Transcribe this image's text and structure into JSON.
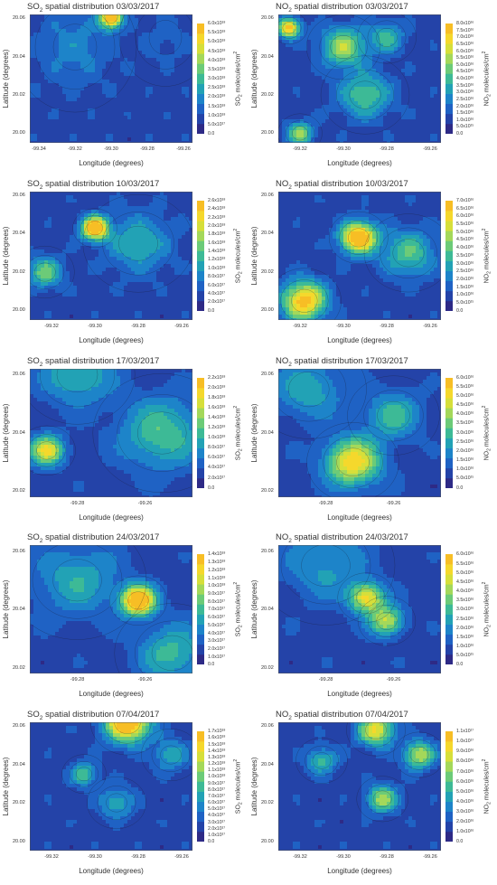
{
  "x_axis_label": "Longitude (degrees)",
  "y_axis_label": "Latitude (degrees)",
  "colorscale": [
    "#2e2a86",
    "#2443a8",
    "#1f62c4",
    "#1d84c9",
    "#22a2b5",
    "#3dba96",
    "#6ccb78",
    "#a4d85a",
    "#d6df3a",
    "#f5d82c",
    "#f7be25"
  ],
  "chart_data": [
    {
      "type": "heatmap",
      "pollutant": "SO",
      "sub": "2",
      "title_rest": " spatial distribution 03/03/2017",
      "xticks": [
        "-99.34",
        "-99.32",
        "-99.30",
        "-99.28",
        "-99.26"
      ],
      "yticks": [
        "20.06",
        "20.04",
        "20.02",
        "20.00"
      ],
      "xlim": [
        -99.345,
        -99.255
      ],
      "ylim": [
        19.995,
        20.062
      ],
      "colorbar": {
        "unit_main": "SO",
        "unit_sub": "2",
        "unit_rest": " molecules/cm",
        "ticks": [
          "6.0x10¹⁸",
          "5.5x10¹⁸",
          "5.0x10¹⁸",
          "4.5x10¹⁸",
          "4.0x10¹⁸",
          "3.5x10¹⁸",
          "3.0x10¹⁸",
          "2.5x10¹⁸",
          "2.0x10¹⁸",
          "1.5x10¹⁸",
          "1.0x10¹⁸",
          "5.0x10¹⁷",
          "0.0"
        ]
      },
      "hotspots": [
        {
          "x": -99.3,
          "y": 20.061,
          "strength": 1.0,
          "spread": 0.006
        },
        {
          "x": -99.32,
          "y": 20.045,
          "strength": 0.18,
          "spread": 0.02
        },
        {
          "x": -99.27,
          "y": 20.05,
          "strength": 0.08,
          "spread": 0.015
        }
      ]
    },
    {
      "type": "heatmap",
      "pollutant": "NO",
      "sub": "2",
      "title_rest": " spatial distribution 03/03/2017",
      "xticks": [
        "-99.32",
        "-99.30",
        "-99.28",
        "-99.26"
      ],
      "yticks": [
        "20.06",
        "20.04",
        "20.02",
        "20.00"
      ],
      "xlim": [
        -99.33,
        -99.255
      ],
      "ylim": [
        19.995,
        20.062
      ],
      "colorbar": {
        "unit_main": "NO",
        "unit_sub": "2",
        "unit_rest": " molecules/cm",
        "ticks": [
          "8.0x10¹⁶",
          "7.5x10¹⁶",
          "7.0x10¹⁶",
          "6.5x10¹⁶",
          "6.0x10¹⁶",
          "5.5x10¹⁶",
          "5.0x10¹⁶",
          "4.5x10¹⁶",
          "4.0x10¹⁶",
          "3.5x10¹⁶",
          "3.0x10¹⁶",
          "2.5x10¹⁶",
          "2.0x10¹⁶",
          "1.5x10¹⁶",
          "1.0x10¹⁶",
          "5.0x10¹⁵",
          "0.0"
        ]
      },
      "hotspots": [
        {
          "x": -99.325,
          "y": 20.055,
          "strength": 0.85,
          "spread": 0.005
        },
        {
          "x": -99.3,
          "y": 20.045,
          "strength": 0.55,
          "spread": 0.01
        },
        {
          "x": -99.28,
          "y": 20.05,
          "strength": 0.35,
          "spread": 0.008
        },
        {
          "x": -99.29,
          "y": 20.02,
          "strength": 0.4,
          "spread": 0.012
        },
        {
          "x": -99.32,
          "y": 20.0,
          "strength": 0.5,
          "spread": 0.006
        }
      ]
    },
    {
      "type": "heatmap",
      "pollutant": "SO",
      "sub": "2",
      "title_rest": " spatial distribution 10/03/2017",
      "xticks": [
        "-99.32",
        "-99.30",
        "-99.28",
        "-99.26"
      ],
      "yticks": [
        "20.06",
        "20.04",
        "20.02",
        "20.00"
      ],
      "xlim": [
        -99.33,
        -99.255
      ],
      "ylim": [
        19.995,
        20.062
      ],
      "colorbar": {
        "unit_main": "SO",
        "unit_sub": "2",
        "unit_rest": " molecules/cm",
        "ticks": [
          "2.6x10¹⁸",
          "2.4x10¹⁸",
          "2.2x10¹⁸",
          "2.0x10¹⁸",
          "1.8x10¹⁸",
          "1.6x10¹⁸",
          "1.4x10¹⁸",
          "1.2x10¹⁸",
          "1.0x10¹⁸",
          "8.0x10¹⁷",
          "6.0x10¹⁷",
          "4.0x10¹⁷",
          "2.0x10¹⁷",
          "0.0"
        ]
      },
      "hotspots": [
        {
          "x": -99.3,
          "y": 20.043,
          "strength": 1.0,
          "spread": 0.006
        },
        {
          "x": -99.323,
          "y": 20.02,
          "strength": 0.45,
          "spread": 0.008
        },
        {
          "x": -99.28,
          "y": 20.035,
          "strength": 0.3,
          "spread": 0.015
        }
      ]
    },
    {
      "type": "heatmap",
      "pollutant": "NO",
      "sub": "2",
      "title_rest": " spatial distribution 10/03/2017",
      "xticks": [
        "-99.32",
        "-99.30",
        "-99.28",
        "-99.26"
      ],
      "yticks": [
        "20.06",
        "20.04",
        "20.02",
        "20.00"
      ],
      "xlim": [
        -99.33,
        -99.255
      ],
      "ylim": [
        19.995,
        20.062
      ],
      "colorbar": {
        "unit_main": "NO",
        "unit_sub": "2",
        "unit_rest": " molecules/cm",
        "ticks": [
          "7.0x10¹⁶",
          "6.5x10¹⁶",
          "6.0x10¹⁶",
          "5.5x10¹⁶",
          "5.0x10¹⁶",
          "4.5x10¹⁶",
          "4.0x10¹⁶",
          "3.5x10¹⁶",
          "3.0x10¹⁶",
          "2.5x10¹⁶",
          "2.0x10¹⁶",
          "1.5x10¹⁶",
          "1.0x10¹⁶",
          "5.0x10¹⁵",
          "0.0"
        ]
      },
      "hotspots": [
        {
          "x": -99.293,
          "y": 20.038,
          "strength": 1.0,
          "spread": 0.008
        },
        {
          "x": -99.318,
          "y": 20.005,
          "strength": 0.85,
          "spread": 0.01
        },
        {
          "x": -99.27,
          "y": 20.03,
          "strength": 0.4,
          "spread": 0.012
        }
      ]
    },
    {
      "type": "heatmap",
      "pollutant": "SO",
      "sub": "2",
      "title_rest": " spatial distribution 17/03/2017",
      "xticks": [
        "-99.28",
        "-99.26"
      ],
      "yticks": [
        "20.06",
        "20.04",
        "20.02"
      ],
      "xlim": [
        -99.294,
        -99.246
      ],
      "ylim": [
        20.018,
        20.062
      ],
      "colorbar": {
        "unit_main": "SO",
        "unit_sub": "2",
        "unit_rest": " molecules/cm",
        "ticks": [
          "2.2x10¹⁸",
          "2.0x10¹⁸",
          "1.8x10¹⁸",
          "1.6x10¹⁸",
          "1.4x10¹⁸",
          "1.2x10¹⁸",
          "1.0x10¹⁸",
          "8.0x10¹⁷",
          "6.0x10¹⁷",
          "4.0x10¹⁷",
          "2.0x10¹⁷",
          "0.0"
        ]
      },
      "hotspots": [
        {
          "x": -99.289,
          "y": 20.034,
          "strength": 0.7,
          "spread": 0.005
        },
        {
          "x": -99.255,
          "y": 20.04,
          "strength": 0.4,
          "spread": 0.012
        },
        {
          "x": -99.28,
          "y": 20.06,
          "strength": 0.35,
          "spread": 0.01
        }
      ]
    },
    {
      "type": "heatmap",
      "pollutant": "NO",
      "sub": "2",
      "title_rest": " spatial distribution 17/03/2017",
      "xticks": [
        "-99.28",
        "-99.26"
      ],
      "yticks": [
        "20.06",
        "20.04",
        "20.02"
      ],
      "xlim": [
        -99.294,
        -99.246
      ],
      "ylim": [
        20.018,
        20.062
      ],
      "colorbar": {
        "unit_main": "NO",
        "unit_sub": "2",
        "unit_rest": " molecules/cm",
        "ticks": [
          "6.0x10¹⁶",
          "5.5x10¹⁶",
          "5.0x10¹⁶",
          "4.5x10¹⁶",
          "4.0x10¹⁶",
          "3.5x10¹⁶",
          "3.0x10¹⁶",
          "2.5x10¹⁶",
          "2.0x10¹⁶",
          "1.5x10¹⁶",
          "1.0x10¹⁶",
          "5.0x10¹⁵",
          "0.0"
        ]
      },
      "hotspots": [
        {
          "x": -99.272,
          "y": 20.03,
          "strength": 0.75,
          "spread": 0.008
        },
        {
          "x": -99.26,
          "y": 20.046,
          "strength": 0.35,
          "spread": 0.008
        },
        {
          "x": -99.285,
          "y": 20.055,
          "strength": 0.3,
          "spread": 0.01
        }
      ]
    },
    {
      "type": "heatmap",
      "pollutant": "SO",
      "sub": "2",
      "title_rest": " spatial distribution 24/03/2017",
      "xticks": [
        "-99.28",
        "-99.26"
      ],
      "yticks": [
        "20.06",
        "20.04",
        "20.02"
      ],
      "xlim": [
        -99.294,
        -99.246
      ],
      "ylim": [
        20.018,
        20.062
      ],
      "colorbar": {
        "unit_main": "SO",
        "unit_sub": "2",
        "unit_rest": " molecules/cm",
        "ticks": [
          "1.4x10¹⁸",
          "1.3x10¹⁸",
          "1.2x10¹⁸",
          "1.1x10¹⁸",
          "1.0x10¹⁸",
          "9.0x10¹⁷",
          "8.0x10¹⁷",
          "7.0x10¹⁷",
          "6.0x10¹⁷",
          "5.0x10¹⁷",
          "4.0x10¹⁷",
          "3.0x10¹⁷",
          "2.0x10¹⁷",
          "1.0x10¹⁷",
          "0.0"
        ]
      },
      "hotspots": [
        {
          "x": -99.262,
          "y": 20.043,
          "strength": 1.0,
          "spread": 0.005
        },
        {
          "x": -99.28,
          "y": 20.05,
          "strength": 0.3,
          "spread": 0.012
        },
        {
          "x": -99.252,
          "y": 20.025,
          "strength": 0.35,
          "spread": 0.01
        }
      ]
    },
    {
      "type": "heatmap",
      "pollutant": "NO",
      "sub": "2",
      "title_rest": " spatial distribution 24/03/2017",
      "xticks": [
        "-99.28",
        "-99.26"
      ],
      "yticks": [
        "20.06",
        "20.04",
        "20.02"
      ],
      "xlim": [
        -99.294,
        -99.246
      ],
      "ylim": [
        20.018,
        20.062
      ],
      "colorbar": {
        "unit_main": "NO",
        "unit_sub": "2",
        "unit_rest": " molecules/cm",
        "ticks": [
          "6.0x10¹⁶",
          "5.5x10¹⁶",
          "5.0x10¹⁶",
          "4.5x10¹⁶",
          "4.0x10¹⁶",
          "3.5x10¹⁶",
          "3.0x10¹⁶",
          "2.5x10¹⁶",
          "2.0x10¹⁶",
          "1.5x10¹⁶",
          "1.0x10¹⁶",
          "5.0x10¹⁵",
          "0.0"
        ]
      },
      "hotspots": [
        {
          "x": -99.268,
          "y": 20.044,
          "strength": 0.7,
          "spread": 0.005
        },
        {
          "x": -99.262,
          "y": 20.036,
          "strength": 0.6,
          "spread": 0.005
        },
        {
          "x": -99.28,
          "y": 20.055,
          "strength": 0.25,
          "spread": 0.012
        }
      ]
    },
    {
      "type": "heatmap",
      "pollutant": "SO",
      "sub": "2",
      "title_rest": " spatial distribution 07/04/2017",
      "xticks": [
        "-99.32",
        "-99.30",
        "-99.28",
        "-99.26"
      ],
      "yticks": [
        "20.06",
        "20.04",
        "20.02",
        "20.00"
      ],
      "xlim": [
        -99.33,
        -99.255
      ],
      "ylim": [
        19.995,
        20.062
      ],
      "colorbar": {
        "unit_main": "SO",
        "unit_sub": "2",
        "unit_rest": " molecules/cm",
        "ticks": [
          "1.7x10¹⁸",
          "1.6x10¹⁸",
          "1.5x10¹⁸",
          "1.4x10¹⁸",
          "1.3x10¹⁸",
          "1.2x10¹⁸",
          "1.1x10¹⁸",
          "1.0x10¹⁸",
          "9.0x10¹⁷",
          "8.0x10¹⁷",
          "7.0x10¹⁷",
          "6.0x10¹⁷",
          "5.0x10¹⁷",
          "4.0x10¹⁷",
          "3.0x10¹⁷",
          "2.0x10¹⁷",
          "1.0x10¹⁷",
          "0.0"
        ]
      },
      "hotspots": [
        {
          "x": -99.285,
          "y": 20.062,
          "strength": 1.0,
          "spread": 0.01
        },
        {
          "x": -99.305,
          "y": 20.035,
          "strength": 0.4,
          "spread": 0.006
        },
        {
          "x": -99.29,
          "y": 20.02,
          "strength": 0.3,
          "spread": 0.008
        },
        {
          "x": -99.265,
          "y": 20.045,
          "strength": 0.3,
          "spread": 0.008
        }
      ]
    },
    {
      "type": "heatmap",
      "pollutant": "NO",
      "sub": "2",
      "title_rest": " spatial distribution 07/04/2017",
      "xticks": [
        "-99.32",
        "-99.30",
        "-99.28",
        "-99.26"
      ],
      "yticks": [
        "20.06",
        "20.04",
        "20.02",
        "20.00"
      ],
      "xlim": [
        -99.33,
        -99.255
      ],
      "ylim": [
        19.995,
        20.062
      ],
      "colorbar": {
        "unit_main": "NO",
        "unit_sub": "2",
        "unit_rest": " molecules/cm",
        "ticks": [
          "1.1x10¹⁷",
          "1.0x10¹⁷",
          "9.0x10¹⁶",
          "8.0x10¹⁶",
          "7.0x10¹⁶",
          "6.0x10¹⁶",
          "5.0x10¹⁶",
          "4.0x10¹⁶",
          "3.0x10¹⁶",
          "2.0x10¹⁶",
          "1.0x10¹⁶",
          "0.0"
        ]
      },
      "hotspots": [
        {
          "x": -99.285,
          "y": 20.058,
          "strength": 0.7,
          "spread": 0.008
        },
        {
          "x": -99.265,
          "y": 20.045,
          "strength": 0.6,
          "spread": 0.007
        },
        {
          "x": -99.282,
          "y": 20.022,
          "strength": 0.55,
          "spread": 0.007
        },
        {
          "x": -99.31,
          "y": 20.042,
          "strength": 0.35,
          "spread": 0.007
        }
      ]
    }
  ]
}
